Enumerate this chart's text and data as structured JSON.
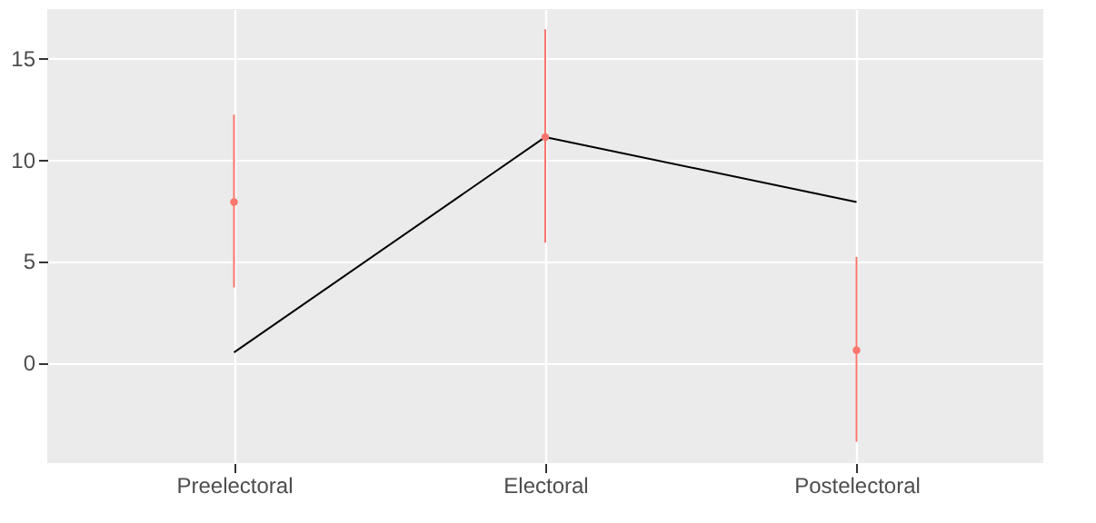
{
  "chart_data": {
    "type": "line",
    "categories": [
      "Preelectoral",
      "Electoral",
      "Postelectoral"
    ],
    "series": [
      {
        "type": "line",
        "color": "#000000",
        "values": [
          0.5,
          11.1,
          7.9
        ]
      },
      {
        "type": "scatter",
        "marker": "circle",
        "color": "#f8766d",
        "values": [
          7.9,
          11.1,
          0.6
        ],
        "errors": [
          [
            3.7,
            12.2
          ],
          [
            5.9,
            16.4
          ],
          [
            -3.9,
            5.2
          ]
        ]
      }
    ],
    "ylim": [
      -4.95,
      17.4
    ],
    "yticks": [
      0,
      5,
      10,
      15
    ],
    "grid": true
  }
}
